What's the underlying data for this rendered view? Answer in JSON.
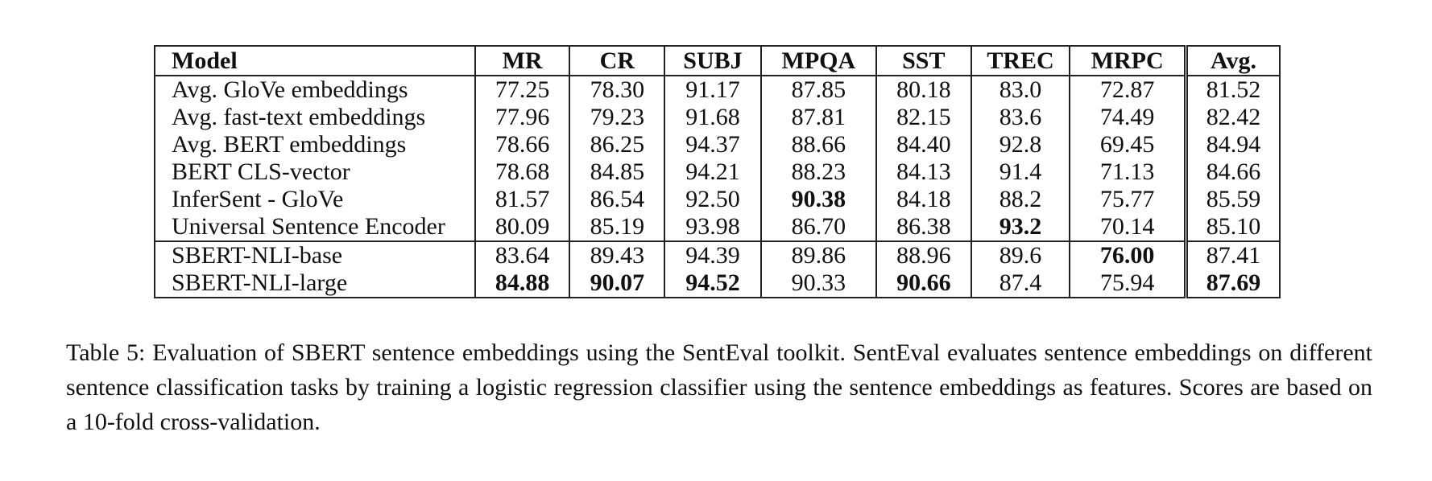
{
  "table": {
    "headers": [
      "Model",
      "MR",
      "CR",
      "SUBJ",
      "MPQA",
      "SST",
      "TREC",
      "MRPC",
      "Avg."
    ],
    "rows": [
      {
        "cells": [
          "Avg. GloVe embeddings",
          "77.25",
          "78.30",
          "91.17",
          "87.85",
          "80.18",
          "83.0",
          "72.87",
          "81.52"
        ],
        "bold": []
      },
      {
        "cells": [
          "Avg. fast-text embeddings",
          "77.96",
          "79.23",
          "91.68",
          "87.81",
          "82.15",
          "83.6",
          "74.49",
          "82.42"
        ],
        "bold": []
      },
      {
        "cells": [
          "Avg. BERT embeddings",
          "78.66",
          "86.25",
          "94.37",
          "88.66",
          "84.40",
          "92.8",
          "69.45",
          "84.94"
        ],
        "bold": []
      },
      {
        "cells": [
          "BERT CLS-vector",
          "78.68",
          "84.85",
          "94.21",
          "88.23",
          "84.13",
          "91.4",
          "71.13",
          "84.66"
        ],
        "bold": []
      },
      {
        "cells": [
          "InferSent - GloVe",
          "81.57",
          "86.54",
          "92.50",
          "90.38",
          "84.18",
          "88.2",
          "75.77",
          "85.59"
        ],
        "bold": [
          4
        ]
      },
      {
        "cells": [
          "Universal Sentence Encoder",
          "80.09",
          "85.19",
          "93.98",
          "86.70",
          "86.38",
          "93.2",
          "70.14",
          "85.10"
        ],
        "bold": [
          6
        ]
      },
      {
        "cells": [
          "SBERT-NLI-base",
          "83.64",
          "89.43",
          "94.39",
          "89.86",
          "88.96",
          "89.6",
          "76.00",
          "87.41"
        ],
        "bold": [
          7
        ]
      },
      {
        "cells": [
          "SBERT-NLI-large",
          "84.88",
          "90.07",
          "94.52",
          "90.33",
          "90.66",
          "87.4",
          "75.94",
          "87.69"
        ],
        "bold": [
          1,
          2,
          3,
          5,
          8
        ]
      }
    ]
  },
  "caption": "Table 5: Evaluation of SBERT sentence embeddings using the SentEval toolkit. SentEval evaluates sentence embeddings on different sentence classification tasks by training a logistic regression classifier using the sentence embeddings as features. Scores are based on a 10-fold cross-validation."
}
